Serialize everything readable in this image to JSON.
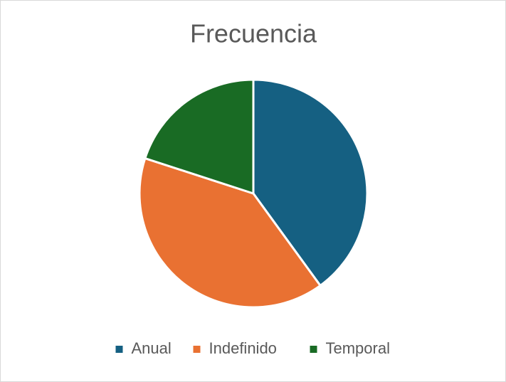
{
  "chart_data": {
    "type": "pie",
    "title": "Frecuencia",
    "categories": [
      "Anual",
      "Indefinido",
      "Temporal"
    ],
    "values": [
      40,
      40,
      20
    ],
    "colors": [
      "#156082",
      "#e97132",
      "#196b24"
    ],
    "legend": "bottom"
  }
}
